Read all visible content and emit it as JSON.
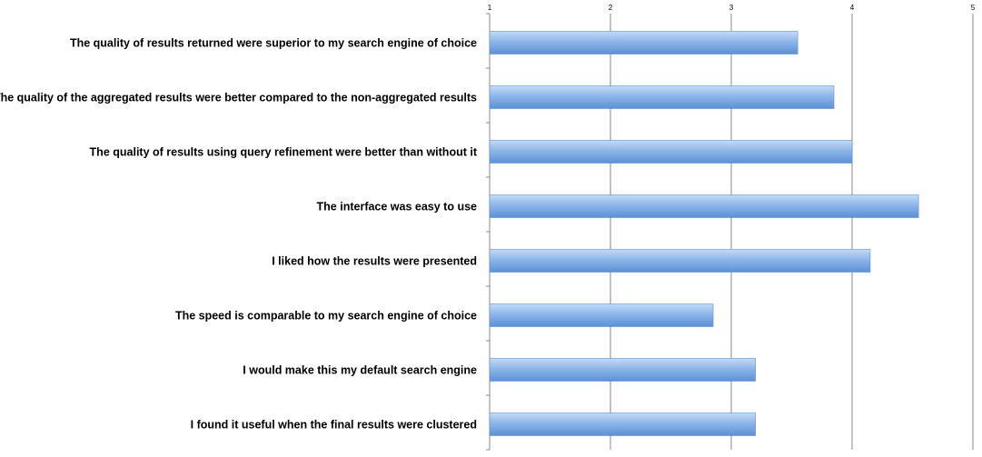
{
  "colors": {
    "bar_top": "#c4dcf6",
    "bar_mid": "#8db6e8",
    "bar_bottom": "#5b91d6",
    "bar_stroke": "#5f90cf",
    "grid": "#8a8a8a",
    "axis": "#8a8a8a"
  },
  "chart_data": {
    "type": "bar",
    "orientation": "horizontal",
    "title": "",
    "xlabel": "",
    "ylabel": "",
    "xlim": [
      1,
      5
    ],
    "x_ticks": [
      "1",
      "2",
      "3",
      "4",
      "5"
    ],
    "x_axis_position": "top",
    "grid": true,
    "legend": "none",
    "categories": [
      "The quality of results returned were superior to my search engine of choice",
      "The quality of the aggregated results were better compared to the non-aggregated results",
      "The quality of results using query refinement were better than without it",
      "The interface was easy to use",
      "I liked how the results were presented",
      "The speed is comparable to my search engine of choice",
      "I would make this my default search engine",
      "I found it useful when the final results were clustered"
    ],
    "values": [
      3.55,
      3.85,
      4.0,
      4.55,
      4.15,
      2.85,
      3.2,
      3.2
    ]
  }
}
